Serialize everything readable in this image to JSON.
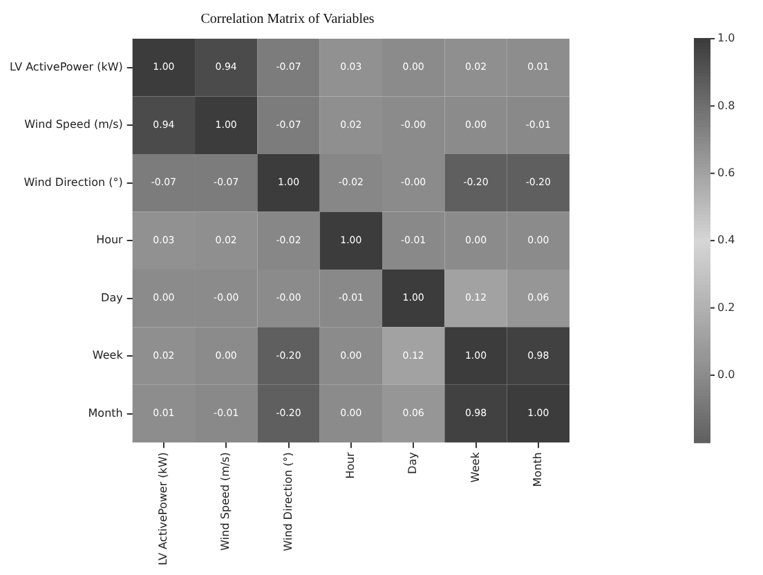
{
  "chart_data": {
    "type": "heatmap",
    "title": "Correlation Matrix of Variables",
    "categories": [
      "LV ActivePower (kW)",
      "Wind Speed (m/s)",
      "Wind Direction (°)",
      "Hour",
      "Day",
      "Week",
      "Month"
    ],
    "y_categories": [
      "LV ActivePower (kW)",
      "Wind Speed (m/s)",
      "Wind Direction (°)",
      "Hour",
      "Day",
      "Week",
      "Month"
    ],
    "cells": [
      [
        1.0,
        0.94,
        -0.07,
        0.03,
        0.0,
        0.02,
        0.01
      ],
      [
        0.94,
        1.0,
        -0.07,
        0.02,
        0.0,
        0.0,
        -0.01
      ],
      [
        -0.07,
        -0.07,
        1.0,
        -0.02,
        0.0,
        -0.2,
        -0.2
      ],
      [
        0.03,
        0.02,
        -0.02,
        1.0,
        -0.01,
        0.0,
        0.0
      ],
      [
        0.0,
        0.0,
        0.0,
        -0.01,
        1.0,
        0.12,
        0.06
      ],
      [
        0.02,
        0.0,
        -0.2,
        0.0,
        0.12,
        1.0,
        0.98
      ],
      [
        0.01,
        -0.01,
        -0.2,
        0.0,
        0.06,
        0.98,
        1.0
      ]
    ],
    "cell_labels": [
      [
        "1.00",
        "0.94",
        "-0.07",
        "0.03",
        "0.00",
        "0.02",
        "0.01"
      ],
      [
        "0.94",
        "1.00",
        "-0.07",
        "0.02",
        "-0.00",
        "0.00",
        "-0.01"
      ],
      [
        "-0.07",
        "-0.07",
        "1.00",
        "-0.02",
        "-0.00",
        "-0.20",
        "-0.20"
      ],
      [
        "0.03",
        "0.02",
        "-0.02",
        "1.00",
        "-0.01",
        "0.00",
        "0.00"
      ],
      [
        "0.00",
        "-0.00",
        "-0.00",
        "-0.01",
        "1.00",
        "0.12",
        "0.06"
      ],
      [
        "0.02",
        "0.00",
        "-0.20",
        "0.00",
        "0.12",
        "1.00",
        "0.98"
      ],
      [
        "0.01",
        "-0.01",
        "-0.20",
        "0.00",
        "0.06",
        "0.98",
        "1.00"
      ]
    ],
    "clim": [
      -0.2,
      1.0
    ],
    "cticks": [
      {
        "value": 0.0,
        "label": "0.0"
      },
      0.2,
      0.4,
      0.6,
      0.8,
      {
        "value": 1.0,
        "label": "1.0"
      }
    ]
  }
}
